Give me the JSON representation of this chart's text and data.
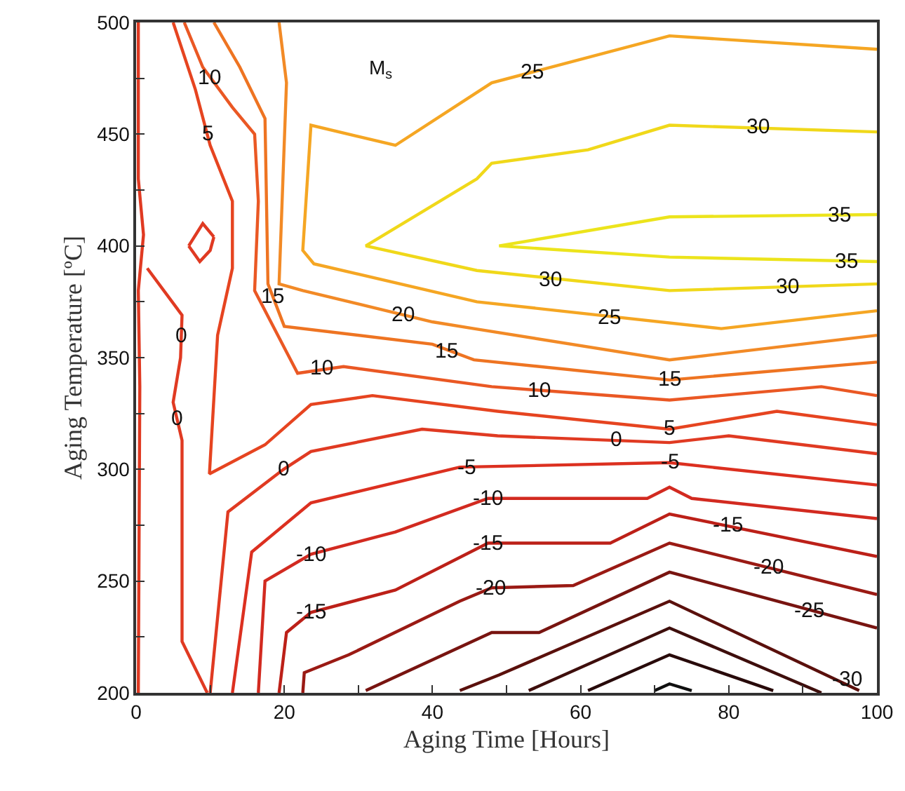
{
  "chart_data": {
    "type": "line",
    "xlabel": "Aging Time [Hours]",
    "ylabel": "Aging Temperature [ºC]",
    "xlim": [
      0,
      100
    ],
    "ylim": [
      200,
      500
    ],
    "xticks": [
      0,
      {
        "value": 10,
        "label": null
      },
      20,
      {
        "value": 30,
        "label": null
      },
      40,
      {
        "value": 50,
        "label": null
      },
      60,
      {
        "value": 70,
        "label": null
      },
      80,
      {
        "value": 90,
        "label": null
      },
      100
    ],
    "yticks": [
      200,
      {
        "value": 225,
        "label": null
      },
      250,
      {
        "value": 275,
        "label": null
      },
      300,
      {
        "value": 325,
        "label": null
      },
      350,
      {
        "value": 375,
        "label": null
      },
      400,
      {
        "value": 425,
        "label": null
      },
      450,
      {
        "value": 475,
        "label": null
      },
      500
    ],
    "series": [
      {
        "color": "#ece41c",
        "x": [
          100,
          72,
          49,
          72,
          100
        ],
        "values": [
          414,
          413,
          400,
          395,
          393
        ]
      },
      {
        "color": "#f0d81a",
        "x": [
          100,
          72,
          61,
          48,
          46,
          31,
          46,
          72,
          100
        ],
        "values": [
          451,
          454,
          443,
          437,
          430,
          400,
          389,
          380,
          383
        ]
      },
      {
        "color": "#f5a623",
        "x": [
          100,
          72,
          48,
          35,
          23.6,
          22.5,
          24,
          46,
          79,
          100
        ],
        "values": [
          488,
          494,
          473,
          445,
          454,
          398,
          392,
          375,
          363,
          371
        ]
      },
      {
        "color": "#f28a26",
        "x": [
          19.3,
          20.3,
          19.3,
          22.5,
          40,
          45.6,
          72,
          100
        ],
        "values": [
          500,
          473,
          383,
          380,
          366,
          363,
          349,
          360
        ]
      },
      {
        "color": "#ee7422",
        "x": [
          10.5,
          14,
          17.4,
          17.8,
          20,
          40,
          45.6,
          72,
          100
        ],
        "values": [
          500,
          480,
          457,
          383,
          364,
          356,
          349,
          340,
          348
        ]
      },
      {
        "color": "#ea5824",
        "x": [
          6.5,
          9,
          13,
          16,
          16.5,
          16,
          21.8,
          28,
          48,
          72,
          92.5,
          100
        ],
        "values": [
          500,
          480,
          462,
          450,
          420,
          380,
          343,
          346,
          337,
          331,
          337,
          333
        ]
      },
      {
        "color": "#e64420",
        "x": [
          5,
          8,
          10,
          13,
          13,
          11,
          9.9,
          17.4,
          23.6,
          31.9,
          48.8,
          72,
          86.5,
          100
        ],
        "values": [
          500,
          470,
          445,
          420,
          390,
          360,
          298,
          311,
          329,
          333,
          326,
          318,
          326,
          320
        ]
      },
      {
        "color": "#e03a22",
        "x": [
          0.3,
          0.3,
          1,
          0.3,
          0.5,
          0.3
        ],
        "values": [
          500,
          430,
          405,
          380,
          337,
          200
        ]
      },
      {
        "color": "#e03a22",
        "x": [
          1.5,
          6.2,
          6,
          5,
          6.2,
          6.2,
          9.6
        ],
        "values": [
          390,
          369,
          350,
          330,
          313,
          223,
          200
        ]
      },
      {
        "color": "#e03a22",
        "x": [
          7.1,
          9,
          10.5
        ],
        "values": [
          400,
          410,
          404
        ]
      },
      {
        "color": "#e03a22",
        "x": [
          7.1,
          8.6,
          10,
          10.5
        ],
        "values": [
          400,
          393,
          398,
          404
        ]
      },
      {
        "color": "#e03a22",
        "x": [
          10,
          12.4,
          19.9,
          23.6,
          38.6,
          48.8,
          72,
          80,
          100
        ],
        "values": [
          200,
          281,
          300,
          308,
          318,
          315,
          312,
          315,
          307
        ]
      },
      {
        "color": "#dc3020",
        "x": [
          13,
          15.6,
          23.6,
          43.7,
          72,
          100
        ],
        "values": [
          200,
          263,
          285,
          301,
          303,
          293
        ]
      },
      {
        "color": "#d22a20",
        "x": [
          16.5,
          17.4,
          23.6,
          35,
          47.5,
          69,
          72,
          75,
          100
        ],
        "values": [
          200,
          250,
          262,
          272,
          287,
          287,
          292,
          287,
          278
        ]
      },
      {
        "color": "#bc2018",
        "x": [
          19.3,
          20.3,
          23.6,
          35,
          47.5,
          64,
          72,
          100
        ],
        "values": [
          200,
          227,
          236,
          246,
          267,
          267,
          280,
          261
        ]
      },
      {
        "color": "#9a1a14",
        "x": [
          22.5,
          22.7,
          28.7,
          43.7,
          48,
          59,
          72,
          100
        ],
        "values": [
          200,
          209,
          217,
          241,
          247,
          248,
          267,
          244
        ]
      },
      {
        "color": "#781410",
        "x": [
          31,
          48,
          54.4,
          72,
          100
        ],
        "values": [
          201,
          227,
          227,
          254,
          229
        ]
      },
      {
        "color": "#5a100c",
        "x": [
          43.7,
          49,
          72,
          97.6
        ],
        "values": [
          201,
          208,
          241,
          201
        ]
      },
      {
        "color": "#3e0e0c",
        "x": [
          53,
          72,
          92.5
        ],
        "values": [
          201,
          229,
          200
        ]
      },
      {
        "color": "#280a0a",
        "x": [
          61,
          72,
          86
        ],
        "values": [
          201,
          217,
          201
        ]
      },
      {
        "color": "#101010",
        "x": [
          70,
          72,
          75
        ],
        "values": [
          201,
          204,
          201
        ]
      }
    ],
    "annotations": [
      "M$_{s}$",
      {
        "text": "35",
        "x": 95,
        "y": 414
      },
      {
        "text": "35",
        "x": 96,
        "y": 393
      },
      {
        "text": "30",
        "x": 84,
        "y": 453
      },
      {
        "text": "30",
        "x": 56,
        "y": 385
      },
      {
        "text": "30",
        "x": 88,
        "y": 382
      },
      {
        "text": "25",
        "x": 53.5,
        "y": 478
      },
      {
        "text": "25",
        "x": 64,
        "y": 368
      },
      {
        "text": "20",
        "x": 36,
        "y": 369
      },
      {
        "text": "15",
        "x": 18.5,
        "y": 377
      },
      {
        "text": "15",
        "x": 42,
        "y": 353
      },
      {
        "text": "15",
        "x": 72,
        "y": 340
      },
      {
        "text": "10",
        "x": 10,
        "y": 475
      },
      {
        "text": "10",
        "x": 25,
        "y": 345
      },
      {
        "text": "10",
        "x": 54.4,
        "y": 335
      },
      {
        "text": "5",
        "x": 9.6,
        "y": 450
      },
      {
        "text": "5",
        "x": 72,
        "y": 318
      },
      {
        "text": "0",
        "x": 5.5,
        "y": 323
      },
      {
        "text": "0",
        "x": 6.1,
        "y": 360
      },
      {
        "text": "0",
        "x": 19.9,
        "y": 300
      },
      {
        "text": "0",
        "x": 64.7,
        "y": 313
      },
      {
        "text": "-5",
        "x": 44.6,
        "y": 301
      },
      {
        "text": "-5",
        "x": 72,
        "y": 303
      },
      {
        "text": "-10",
        "x": 23.6,
        "y": 262
      },
      {
        "text": "-10",
        "x": 47.5,
        "y": 287
      },
      {
        "text": "-15",
        "x": 23.6,
        "y": 236
      },
      {
        "text": "-15",
        "x": 47.5,
        "y": 267
      },
      {
        "text": "-15",
        "x": 80,
        "y": 275
      },
      {
        "text": "-20",
        "x": 48,
        "y": 247
      },
      {
        "text": "-20",
        "x": 85.5,
        "y": 256
      },
      {
        "text": "-25",
        "x": 91,
        "y": 237
      },
      {
        "text": "-30",
        "x": 96,
        "y": 206
      }
    ]
  }
}
